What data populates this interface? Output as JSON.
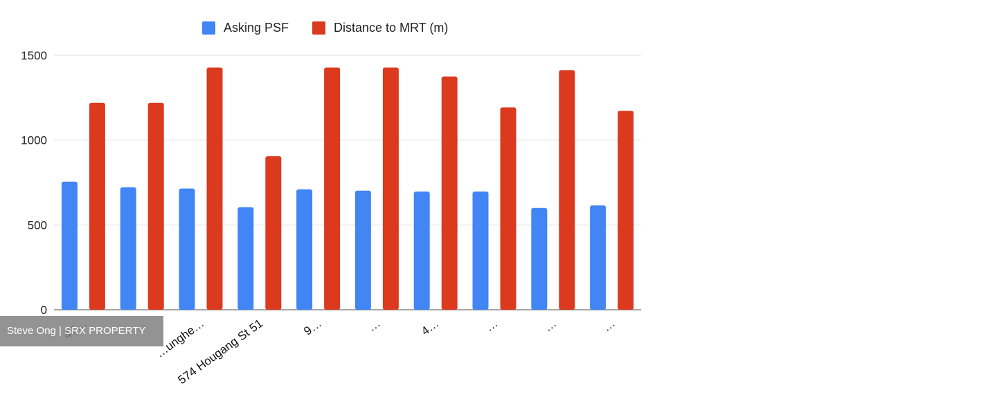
{
  "chart_data": {
    "type": "bar",
    "categories": [
      "47…",
      "…",
      "…unghe…",
      "574 Hougang St 51",
      "9…",
      "…",
      "4…",
      "…",
      "…",
      "…"
    ],
    "series": [
      {
        "name": "Asking PSF",
        "color": "#4285f4",
        "values": [
          755,
          722,
          715,
          605,
          710,
          702,
          697,
          697,
          600,
          615
        ]
      },
      {
        "name": "Distance to MRT (m)",
        "color": "#db3a1f",
        "values": [
          1220,
          1220,
          1428,
          905,
          1428,
          1428,
          1375,
          1193,
          1413,
          1173
        ]
      }
    ],
    "yticks": [
      0,
      500,
      1000,
      1500
    ],
    "ylim": [
      0,
      1500
    ],
    "grid": true,
    "legend": "top",
    "title": "",
    "xlabel": "",
    "ylabel": ""
  },
  "watermark": {
    "text": "Steve Ong | SRX PROPERTY"
  }
}
